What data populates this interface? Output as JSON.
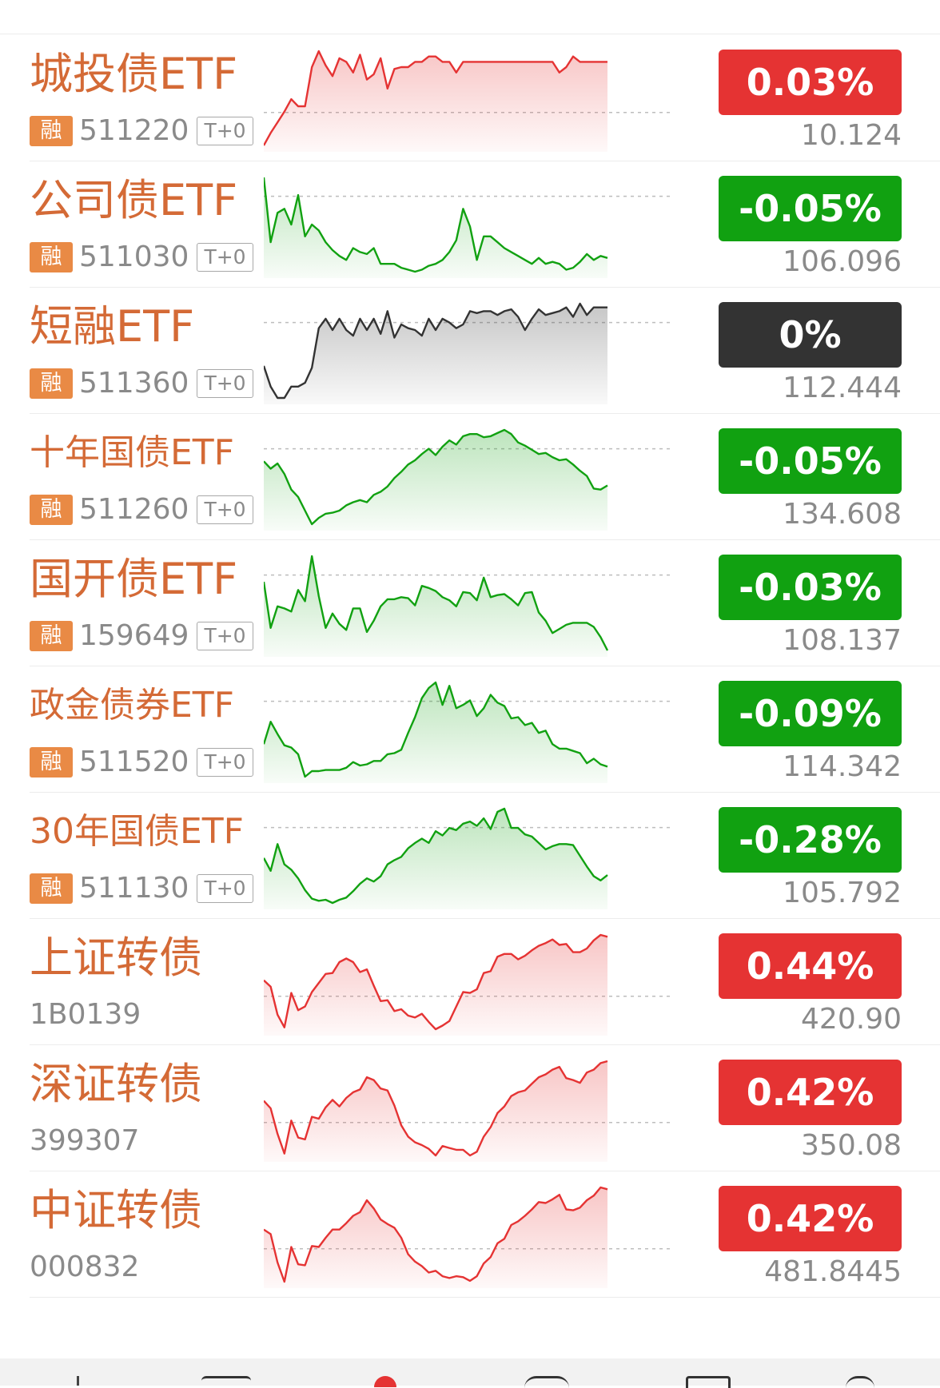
{
  "colors": {
    "up": "#e53333",
    "down": "#11a111",
    "flat": "#333333",
    "name": "#d46a36",
    "rong_badge": "#e98a45"
  },
  "rows": [
    {
      "name": "城投债ETF",
      "code": "511220",
      "rong": "融",
      "tag": "T+0",
      "change": "0.03%",
      "price": "10.124",
      "trend": "up",
      "series": [
        0,
        7,
        13,
        19,
        26,
        22,
        22,
        44,
        53,
        45,
        39,
        49,
        47,
        41,
        51,
        37,
        40,
        49,
        32,
        43,
        44,
        44,
        47,
        47,
        50,
        50,
        47,
        47,
        41,
        47,
        47,
        47,
        47,
        47,
        47,
        47,
        47,
        47,
        47,
        47,
        47,
        47,
        47,
        41,
        44,
        50,
        47,
        47,
        47,
        47,
        47
      ]
    },
    {
      "name": "公司债ETF",
      "code": "511030",
      "rong": "融",
      "tag": "T+0",
      "change": "-0.05%",
      "price": "106.096",
      "trend": "down",
      "series": [
        53,
        20,
        35,
        37,
        29,
        44,
        23,
        29,
        26,
        20,
        16,
        13,
        11,
        17,
        15,
        14,
        17,
        9,
        9,
        9,
        7,
        6,
        5,
        6,
        8,
        9,
        11,
        15,
        21,
        37,
        28,
        11,
        23,
        23,
        20,
        17,
        15,
        13,
        11,
        9,
        12,
        9,
        10,
        9,
        6,
        7,
        10,
        14,
        11,
        13,
        12
      ]
    },
    {
      "name": "短融ETF",
      "code": "511360",
      "rong": "融",
      "tag": "T+0",
      "change": "0%",
      "price": "112.444",
      "trend": "flat",
      "series": [
        33,
        22,
        16,
        16,
        22,
        22,
        24,
        32,
        53,
        58,
        52,
        58,
        52,
        49,
        58,
        52,
        58,
        50,
        62,
        48,
        55,
        53,
        52,
        49,
        58,
        52,
        58,
        56,
        53,
        55,
        62,
        61,
        62,
        62,
        60,
        62,
        63,
        59,
        52,
        58,
        63,
        60,
        61,
        62,
        64,
        59,
        66,
        60,
        64,
        64,
        64
      ]
    },
    {
      "name": "十年国债ETF",
      "code": "511260",
      "rong": "融",
      "tag": "T+0",
      "change": "-0.05%",
      "price": "134.608",
      "trend": "down",
      "series": [
        62,
        55,
        60,
        50,
        35,
        28,
        15,
        2,
        8,
        12,
        13,
        15,
        20,
        23,
        25,
        23,
        30,
        33,
        38,
        46,
        52,
        59,
        63,
        69,
        74,
        68,
        76,
        82,
        78,
        86,
        88,
        88,
        85,
        86,
        89,
        92,
        88,
        80,
        77,
        73,
        69,
        70,
        66,
        63,
        64,
        59,
        53,
        48,
        36,
        35,
        39
      ]
    },
    {
      "name": "国开债ETF",
      "code": "159649",
      "rong": "融",
      "tag": "T+0",
      "change": "-0.03%",
      "price": "108.137",
      "trend": "down",
      "series": [
        67,
        22,
        43,
        41,
        38,
        59,
        48,
        92,
        53,
        22,
        36,
        26,
        20,
        41,
        41,
        18,
        29,
        43,
        50,
        50,
        52,
        51,
        44,
        63,
        61,
        58,
        52,
        49,
        43,
        57,
        56,
        49,
        71,
        52,
        54,
        55,
        50,
        44,
        56,
        57,
        37,
        29,
        17,
        21,
        25,
        27,
        27,
        27,
        23,
        13,
        0
      ]
    },
    {
      "name": "政金债券ETF",
      "code": "511520",
      "rong": "融",
      "tag": "T+0",
      "change": "-0.09%",
      "price": "114.342",
      "trend": "down",
      "series": [
        38,
        58,
        47,
        37,
        35,
        29,
        9,
        14,
        14,
        15,
        15,
        15,
        17,
        22,
        19,
        20,
        23,
        23,
        29,
        30,
        33,
        48,
        62,
        79,
        88,
        93,
        73,
        90,
        70,
        73,
        77,
        63,
        70,
        82,
        75,
        72,
        61,
        62,
        55,
        57,
        48,
        50,
        38,
        34,
        34,
        32,
        30,
        21,
        25,
        20,
        18
      ]
    },
    {
      "name": "30年国债ETF",
      "code": "511130",
      "rong": "融",
      "tag": "T+0",
      "change": "-0.28%",
      "price": "105.792",
      "trend": "down",
      "series": [
        45,
        33,
        58,
        39,
        34,
        26,
        15,
        7,
        5,
        6,
        3,
        6,
        8,
        14,
        21,
        26,
        23,
        28,
        39,
        43,
        46,
        54,
        59,
        63,
        59,
        70,
        66,
        73,
        71,
        77,
        79,
        75,
        82,
        72,
        88,
        91,
        73,
        73,
        67,
        65,
        59,
        53,
        56,
        58,
        58,
        57,
        47,
        37,
        28,
        24,
        29
      ]
    },
    {
      "name": "上证转债",
      "code": "1B0139",
      "price": "420.90",
      "change": "0.44%",
      "trend": "up",
      "series": [
        54,
        47,
        16,
        2,
        40,
        21,
        25,
        41,
        51,
        61,
        62,
        74,
        78,
        74,
        63,
        66,
        48,
        31,
        32,
        20,
        22,
        15,
        13,
        17,
        8,
        0,
        4,
        9,
        25,
        41,
        40,
        44,
        62,
        64,
        80,
        83,
        83,
        77,
        81,
        87,
        92,
        95,
        99,
        93,
        94,
        85,
        85,
        89,
        98,
        104,
        102
      ]
    },
    {
      "name": "深证转债",
      "code": "399307",
      "price": "350.08",
      "change": "0.42%",
      "trend": "up",
      "series": [
        58,
        50,
        23,
        2,
        37,
        19,
        17,
        41,
        39,
        51,
        59,
        52,
        61,
        67,
        70,
        83,
        80,
        71,
        69,
        53,
        32,
        20,
        14,
        11,
        7,
        0,
        10,
        8,
        6,
        6,
        0,
        4,
        20,
        30,
        45,
        52,
        63,
        67,
        69,
        76,
        83,
        86,
        91,
        94,
        82,
        80,
        77,
        88,
        91,
        98,
        100
      ]
    },
    {
      "name": "中证转债",
      "code": "000832",
      "price": "481.8445",
      "change": "0.42%",
      "trend": "up",
      "series": [
        57,
        52,
        21,
        0,
        38,
        19,
        18,
        39,
        38,
        48,
        57,
        57,
        64,
        72,
        76,
        89,
        80,
        68,
        63,
        59,
        48,
        30,
        22,
        17,
        10,
        12,
        6,
        4,
        6,
        5,
        1,
        6,
        20,
        27,
        42,
        47,
        62,
        66,
        72,
        79,
        87,
        86,
        90,
        95,
        79,
        78,
        81,
        89,
        94,
        103,
        101
      ]
    }
  ],
  "bottom_nav": [
    "nav-1-icon",
    "nav-2-icon",
    "nav-3-icon",
    "nav-4-icon",
    "nav-5-icon",
    "nav-6-icon"
  ]
}
